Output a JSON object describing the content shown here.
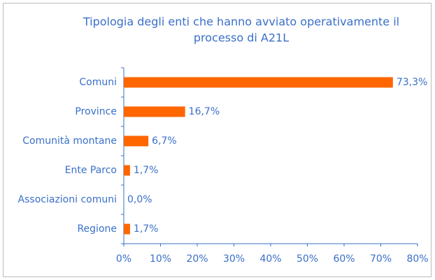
{
  "chart_data": {
    "type": "barh",
    "title": [
      "Tipologia degli enti che hanno avviato operativamente il",
      "processo di A21L"
    ],
    "categories": [
      "Comuni",
      "Province",
      "Comunità montane",
      "Ente Parco",
      "Associazioni comuni",
      "Regione"
    ],
    "values": [
      73.3,
      16.7,
      6.7,
      1.7,
      0.0,
      1.7
    ],
    "value_labels": [
      "73,3%",
      "16,7%",
      "6,7%",
      "1,7%",
      "0,0%",
      "1,7%"
    ],
    "color": "#ff6600",
    "xlim": [
      0,
      80
    ],
    "xticks": [
      {
        "value": 0,
        "label": "0%"
      },
      {
        "value": 10,
        "label": "10%"
      },
      {
        "value": 20,
        "label": "20%"
      },
      {
        "value": 30,
        "label": "30%"
      },
      {
        "value": 40,
        "label": "40%"
      },
      {
        "value": 50,
        "label": "50%"
      },
      {
        "value": 60,
        "label": "60%"
      },
      {
        "value": 70,
        "label": "70%"
      },
      {
        "value": 80,
        "label": "80%"
      }
    ],
    "grid": false
  }
}
